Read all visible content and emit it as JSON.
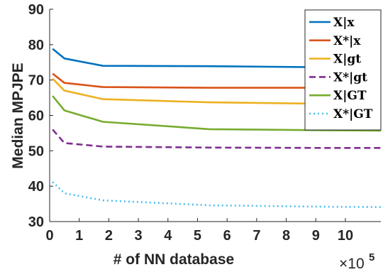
{
  "chart_data": {
    "type": "line",
    "xlabel": "# of NN database",
    "ylabel": "Median MPJPE",
    "x_multiplier": "×10",
    "x_multiplier_exp": "5",
    "xlim": [
      0,
      11.2
    ],
    "ylim": [
      30,
      90
    ],
    "xticks": [
      0,
      1,
      2,
      3,
      4,
      5,
      6,
      7,
      8,
      9,
      10
    ],
    "yticks": [
      30,
      40,
      50,
      60,
      70,
      80,
      90
    ],
    "grid": false,
    "legend_position": "top-right",
    "series": [
      {
        "name": "X|x",
        "color": "#0072bd",
        "style": "solid",
        "x": [
          0.1,
          0.5,
          1.8,
          5.4,
          9.3,
          11.2
        ],
        "y": [
          78.8,
          76.1,
          74.0,
          73.9,
          73.6,
          73.9
        ]
      },
      {
        "name": "X*|x",
        "color": "#d95319",
        "style": "solid",
        "x": [
          0.1,
          0.5,
          1.8,
          5.4,
          9.3,
          11.2
        ],
        "y": [
          71.8,
          69.2,
          68.0,
          67.8,
          67.8,
          67.9
        ]
      },
      {
        "name": "X|gt",
        "color": "#edb120",
        "style": "solid",
        "x": [
          0.1,
          0.5,
          1.8,
          5.4,
          9.3,
          11.2
        ],
        "y": [
          70.4,
          67.0,
          64.6,
          63.7,
          63.3,
          63.5
        ]
      },
      {
        "name": "X*|gt",
        "color": "#7e2f8e",
        "style": "dashed",
        "x": [
          0.1,
          0.5,
          1.8,
          5.4,
          9.3,
          11.2
        ],
        "y": [
          56.0,
          52.2,
          51.2,
          50.9,
          50.8,
          50.8
        ]
      },
      {
        "name": "X|GT",
        "color": "#77ac30",
        "style": "solid",
        "x": [
          0.1,
          0.5,
          1.8,
          5.4,
          9.3,
          11.2
        ],
        "y": [
          65.5,
          61.4,
          58.2,
          56.1,
          55.8,
          55.7
        ]
      },
      {
        "name": "X*|GT",
        "color": "#4dbeee",
        "style": "dotted",
        "x": [
          0.1,
          0.5,
          1.8,
          5.4,
          9.3,
          11.2
        ],
        "y": [
          41.2,
          38.0,
          36.0,
          34.6,
          34.2,
          34.1
        ]
      }
    ]
  }
}
